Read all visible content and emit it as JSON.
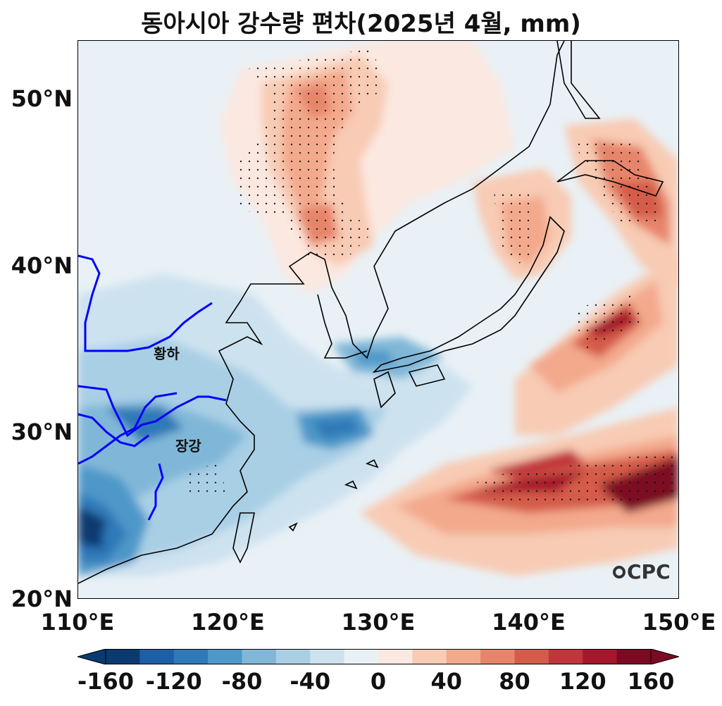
{
  "title": "동아시아 강수량 편차(2025년 4월, mm)",
  "lat_ticks": [
    {
      "value": 50,
      "label": "50°N"
    },
    {
      "value": 40,
      "label": "40°N"
    },
    {
      "value": 30,
      "label": "30°N"
    },
    {
      "value": 20,
      "label": "20°N"
    }
  ],
  "lon_ticks": [
    {
      "value": 110,
      "label": "110°E"
    },
    {
      "value": 120,
      "label": "120°E"
    },
    {
      "value": 130,
      "label": "130°E"
    },
    {
      "value": 140,
      "label": "140°E"
    },
    {
      "value": 150,
      "label": "150°E"
    }
  ],
  "rivers": {
    "yellow_river": "황하",
    "yangtze": "장강"
  },
  "logo": "CPC",
  "colorbar": {
    "min": -160,
    "max": 160,
    "tick_labels": [
      "-160",
      "-120",
      "-80",
      "-40",
      "0",
      "40",
      "80",
      "120",
      "160"
    ],
    "colors": [
      "#0b3a70",
      "#1d5fa6",
      "#2f79b8",
      "#4d98c9",
      "#80b7d8",
      "#a9cfe5",
      "#cde2ef",
      "#e9f1f6",
      "#fbe8e0",
      "#f8cbb4",
      "#f3a98c",
      "#e7856a",
      "#d45b4a",
      "#c0363a",
      "#a4172c",
      "#7c0a22"
    ]
  },
  "map_extent": {
    "lon_min": 110,
    "lon_max": 150,
    "lat_min": 20,
    "lat_max": 53.5
  }
}
